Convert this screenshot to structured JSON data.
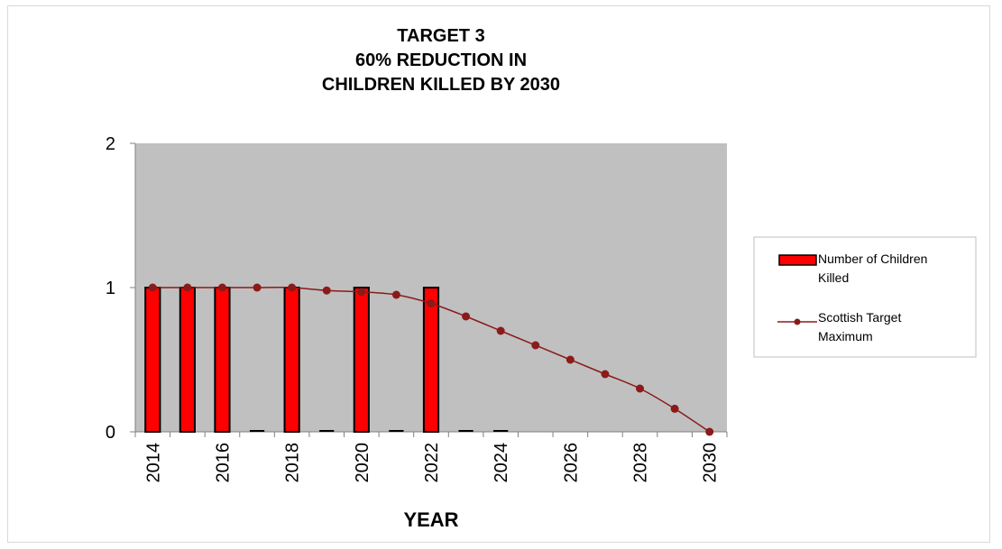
{
  "chart_data": {
    "type": "bar",
    "title_lines": [
      "TARGET 3",
      "60% REDUCTION IN",
      "CHILDREN KILLED BY 2030"
    ],
    "xlabel": "YEAR",
    "ylabel": "",
    "ylim": [
      0,
      2
    ],
    "yticks": [
      "0",
      "1",
      "2"
    ],
    "x": [
      2014,
      2015,
      2016,
      2017,
      2018,
      2019,
      2020,
      2021,
      2022,
      2023,
      2024,
      2025,
      2026,
      2027,
      2028,
      2029,
      2030
    ],
    "x_tick_labels": [
      "2014",
      "2016",
      "2018",
      "2020",
      "2022",
      "2024",
      "2026",
      "2028",
      "2030"
    ],
    "series": [
      {
        "name": "Number of Children Killed",
        "kind": "bar",
        "color": "#ff0000",
        "values": [
          1,
          1,
          1,
          0,
          1,
          0,
          1,
          0,
          1,
          0,
          0,
          null,
          null,
          null,
          null,
          null,
          null
        ]
      },
      {
        "name": "Scottish Target Maximum",
        "kind": "line",
        "color": "#8b1a1a",
        "values": [
          1,
          1,
          1,
          1,
          1,
          0.98,
          0.97,
          0.95,
          0.89,
          0.8,
          0.7,
          0.6,
          0.5,
          0.4,
          0.3,
          0.16,
          0
        ]
      }
    ],
    "legend": {
      "position": "right",
      "entries": [
        {
          "line1": "Number of Children",
          "line2": "Killed"
        },
        {
          "line1": "Scottish Target",
          "line2": "Maximum"
        }
      ]
    },
    "plot_background": "#c0c0c0",
    "grid": false
  }
}
